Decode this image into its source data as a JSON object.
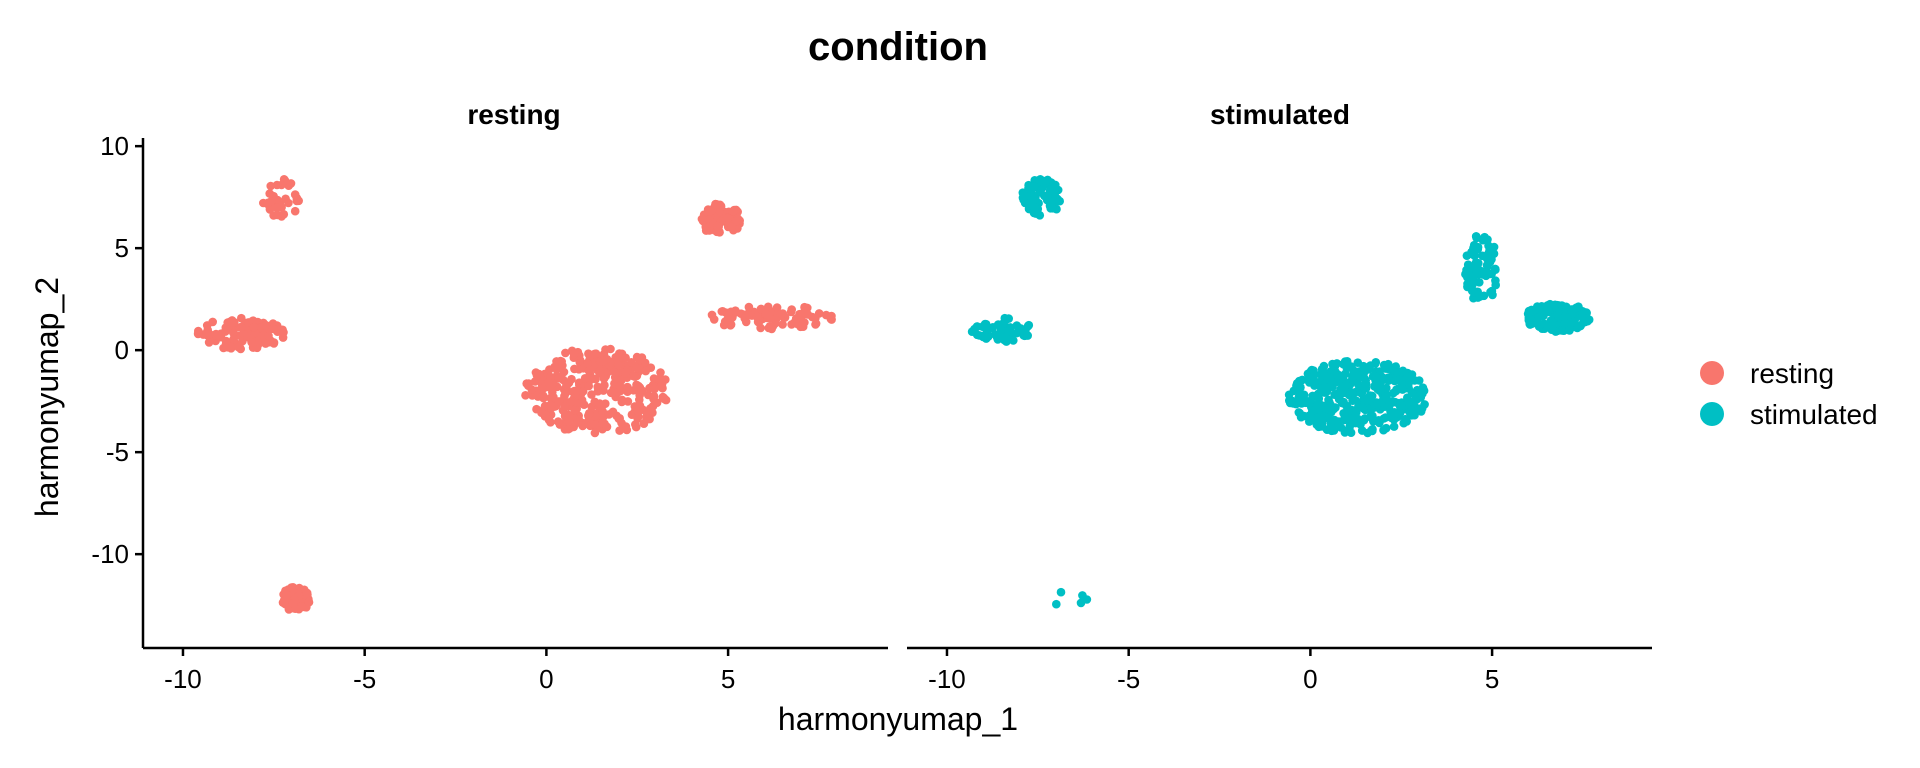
{
  "chart_data": {
    "type": "scatter",
    "title": "condition",
    "xlabel": "harmonyumap_1",
    "ylabel": "harmonyumap_2",
    "xlim": [
      -11.1,
      9.4
    ],
    "ylim": [
      -14.6,
      10.4
    ],
    "x_ticks": [
      "-10",
      "-5",
      "0",
      "5"
    ],
    "y_ticks": [
      "10",
      "5",
      "0",
      "-5",
      "-10"
    ],
    "grid": false,
    "legend_position": "right",
    "legend": [
      {
        "label": "resting",
        "color": "#F8766D"
      },
      {
        "label": "stimulated",
        "color": "#00BFC4"
      }
    ],
    "panels": [
      {
        "facet": "resting",
        "color": "#F8766D",
        "clusters": [
          {
            "center": [
              -7.3,
              7.4
            ],
            "spread": [
              0.5,
              1.0
            ],
            "n": 30
          },
          {
            "center": [
              -8.4,
              0.8
            ],
            "spread": [
              1.2,
              0.8
            ],
            "n": 110
          },
          {
            "center": [
              -6.9,
              -12.2
            ],
            "spread": [
              0.4,
              0.6
            ],
            "n": 55
          },
          {
            "center": [
              1.4,
              -2.0
            ],
            "spread": [
              2.0,
              2.1
            ],
            "n": 330
          },
          {
            "center": [
              4.8,
              6.4
            ],
            "spread": [
              0.55,
              0.8
            ],
            "n": 100
          },
          {
            "center": [
              6.2,
              1.6
            ],
            "spread": [
              1.7,
              0.6
            ],
            "n": 85
          }
        ]
      },
      {
        "facet": "stimulated",
        "color": "#00BFC4",
        "clusters": [
          {
            "center": [
              -7.4,
              7.5
            ],
            "spread": [
              0.55,
              0.9
            ],
            "n": 95
          },
          {
            "center": [
              -8.5,
              1.0
            ],
            "spread": [
              0.9,
              0.6
            ],
            "n": 60
          },
          {
            "center": [
              -6.6,
              -12.2
            ],
            "spread": [
              0.5,
              0.6
            ],
            "n": 5
          },
          {
            "center": [
              1.3,
              -2.3
            ],
            "spread": [
              1.9,
              1.8
            ],
            "n": 400
          },
          {
            "center": [
              4.7,
              4.0
            ],
            "spread": [
              0.45,
              1.8
            ],
            "n": 70
          },
          {
            "center": [
              6.8,
              1.6
            ],
            "spread": [
              0.9,
              0.7
            ],
            "n": 150
          }
        ]
      }
    ]
  }
}
